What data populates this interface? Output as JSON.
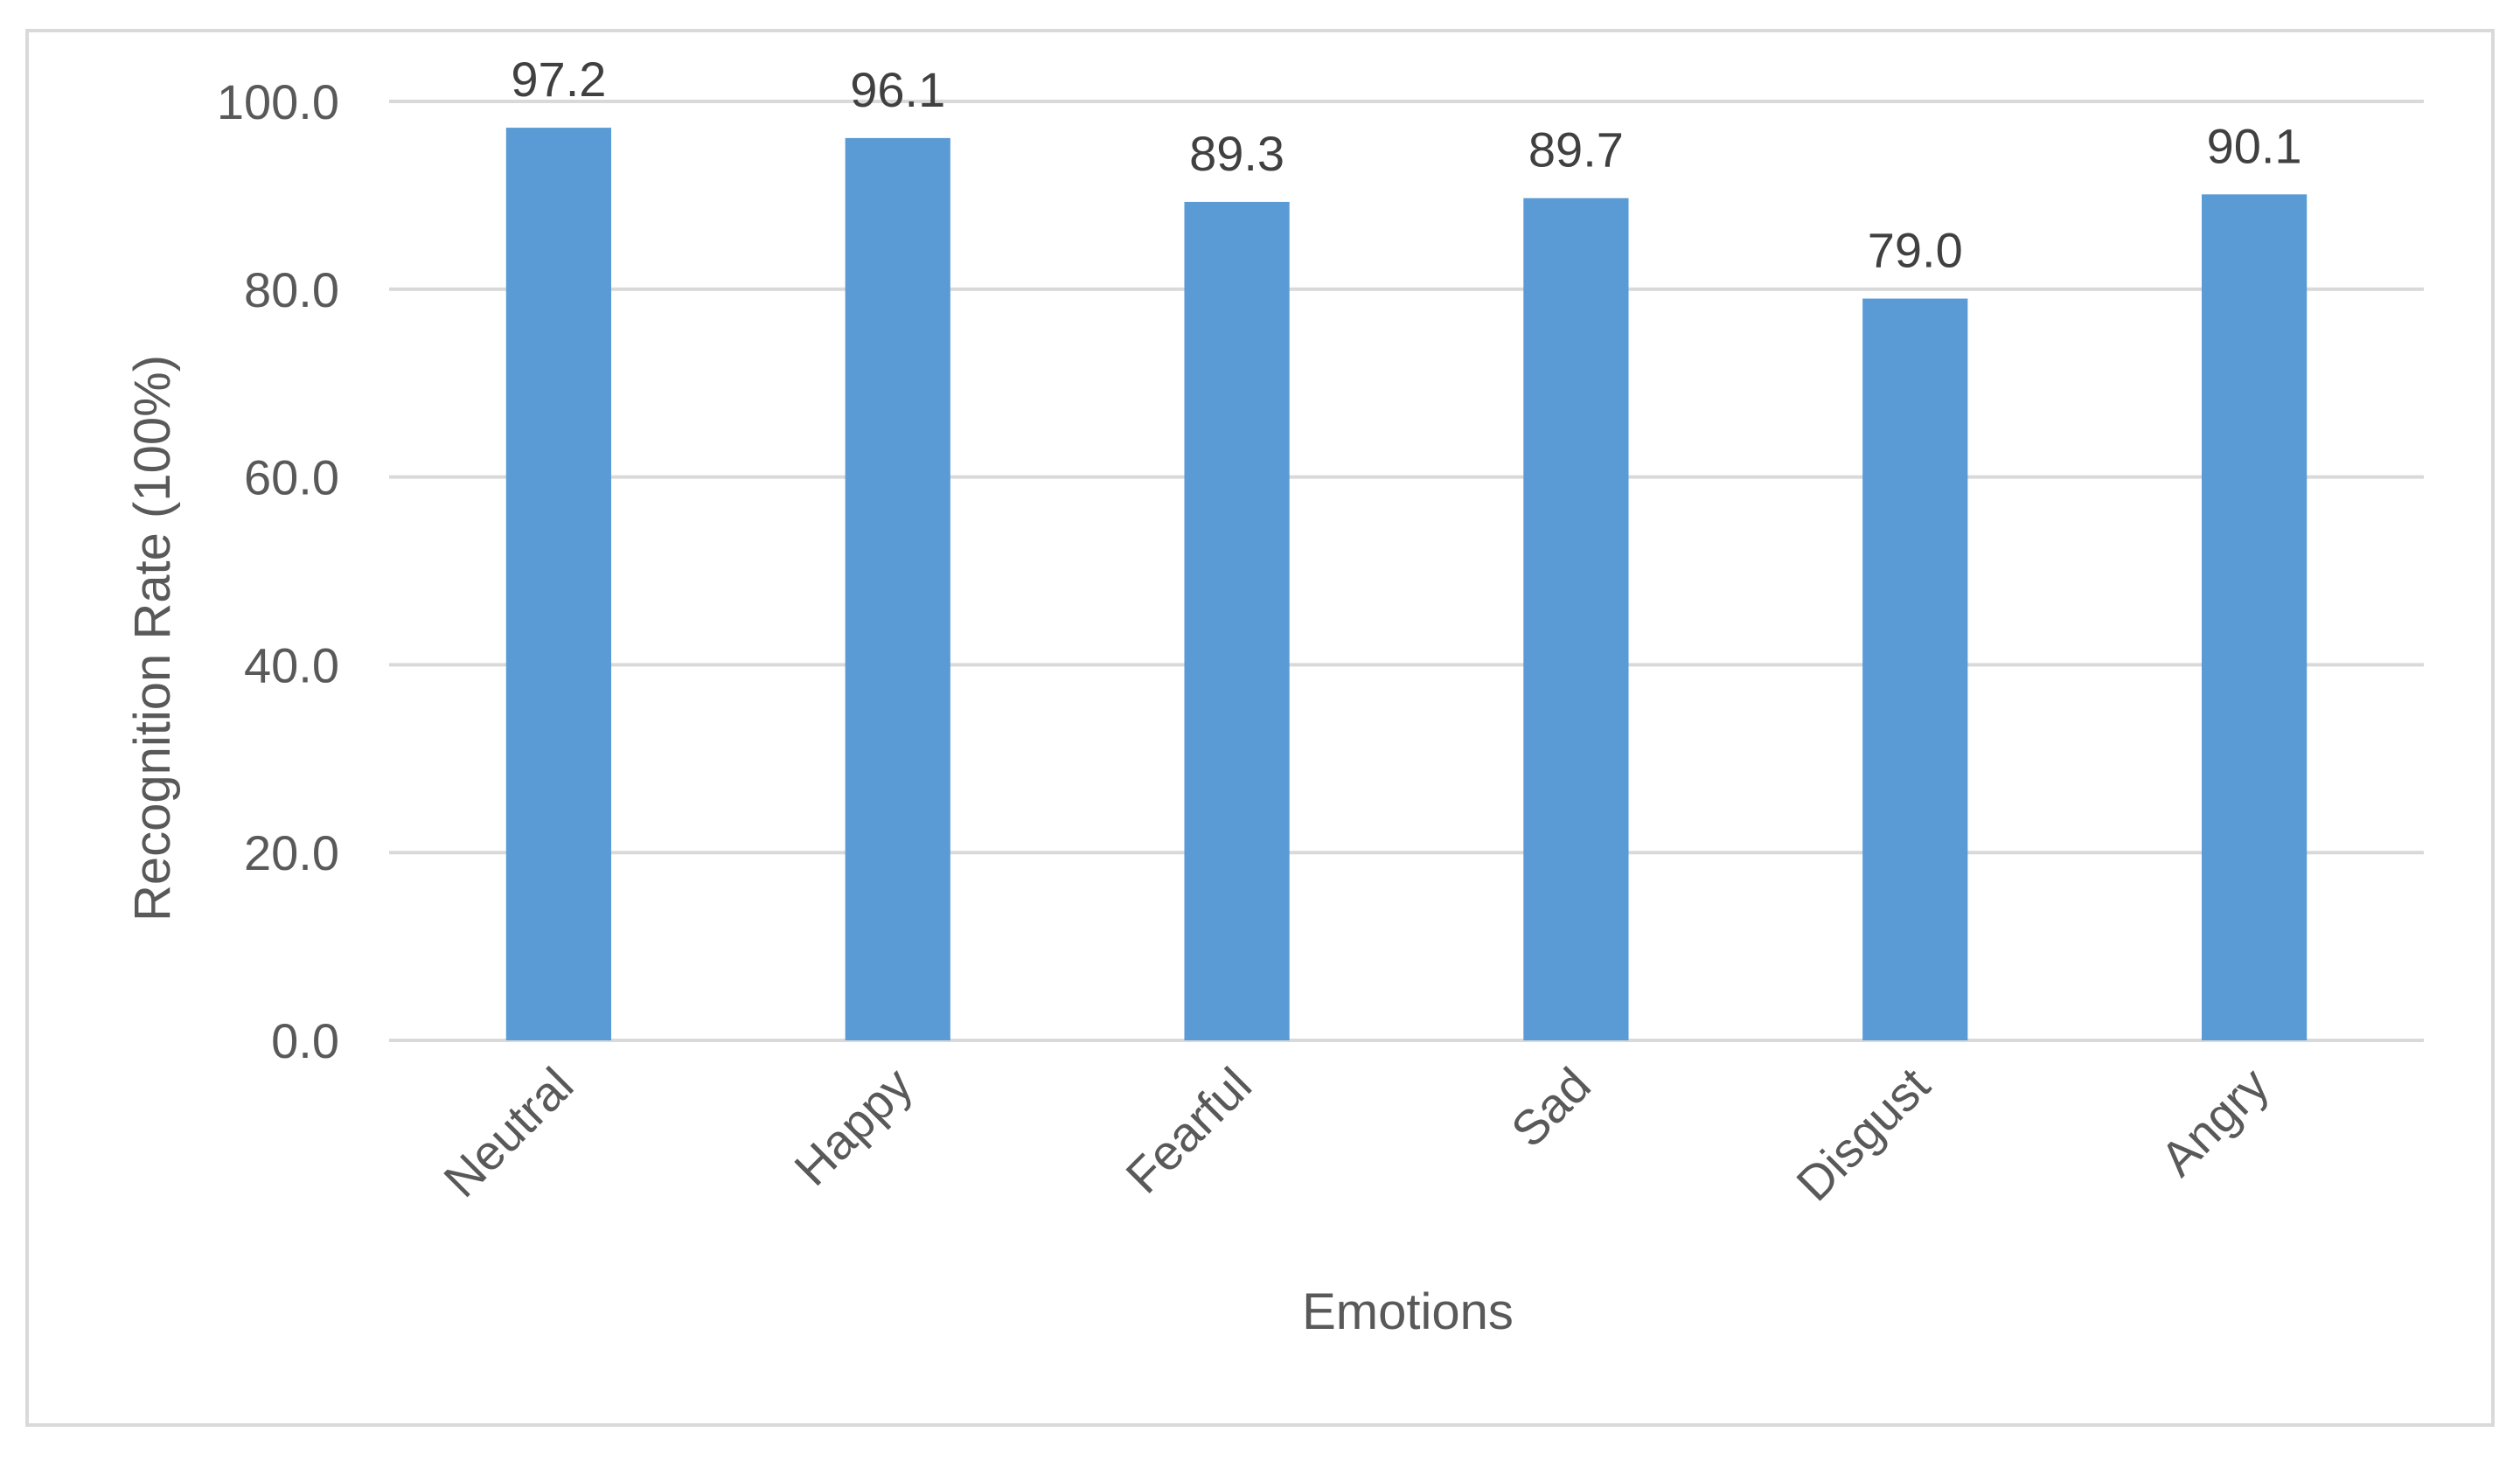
{
  "chart_data": {
    "type": "bar",
    "title": "",
    "xlabel": "Emotions",
    "ylabel": "Recognition Rate (100%)",
    "categories": [
      "Neutral",
      "Happy",
      "Fearful",
      "Sad",
      "Disgust",
      "Angry"
    ],
    "values": [
      97.2,
      96.1,
      89.3,
      89.7,
      79.0,
      90.1
    ],
    "value_labels": [
      "97.2",
      "96.1",
      "89.3",
      "89.7",
      "79.0",
      "90.1"
    ],
    "ylim": [
      0,
      100
    ],
    "yticks": [
      "0.0",
      "20.0",
      "40.0",
      "60.0",
      "80.0",
      "100.0"
    ],
    "ytick_values": [
      0,
      20,
      40,
      60,
      80,
      100
    ],
    "grid": true,
    "legend": "none",
    "colors": {
      "bar": "#5b9bd5",
      "grid": "#d9d9d9",
      "text": "#595959",
      "border": "#d9d9d9"
    }
  }
}
